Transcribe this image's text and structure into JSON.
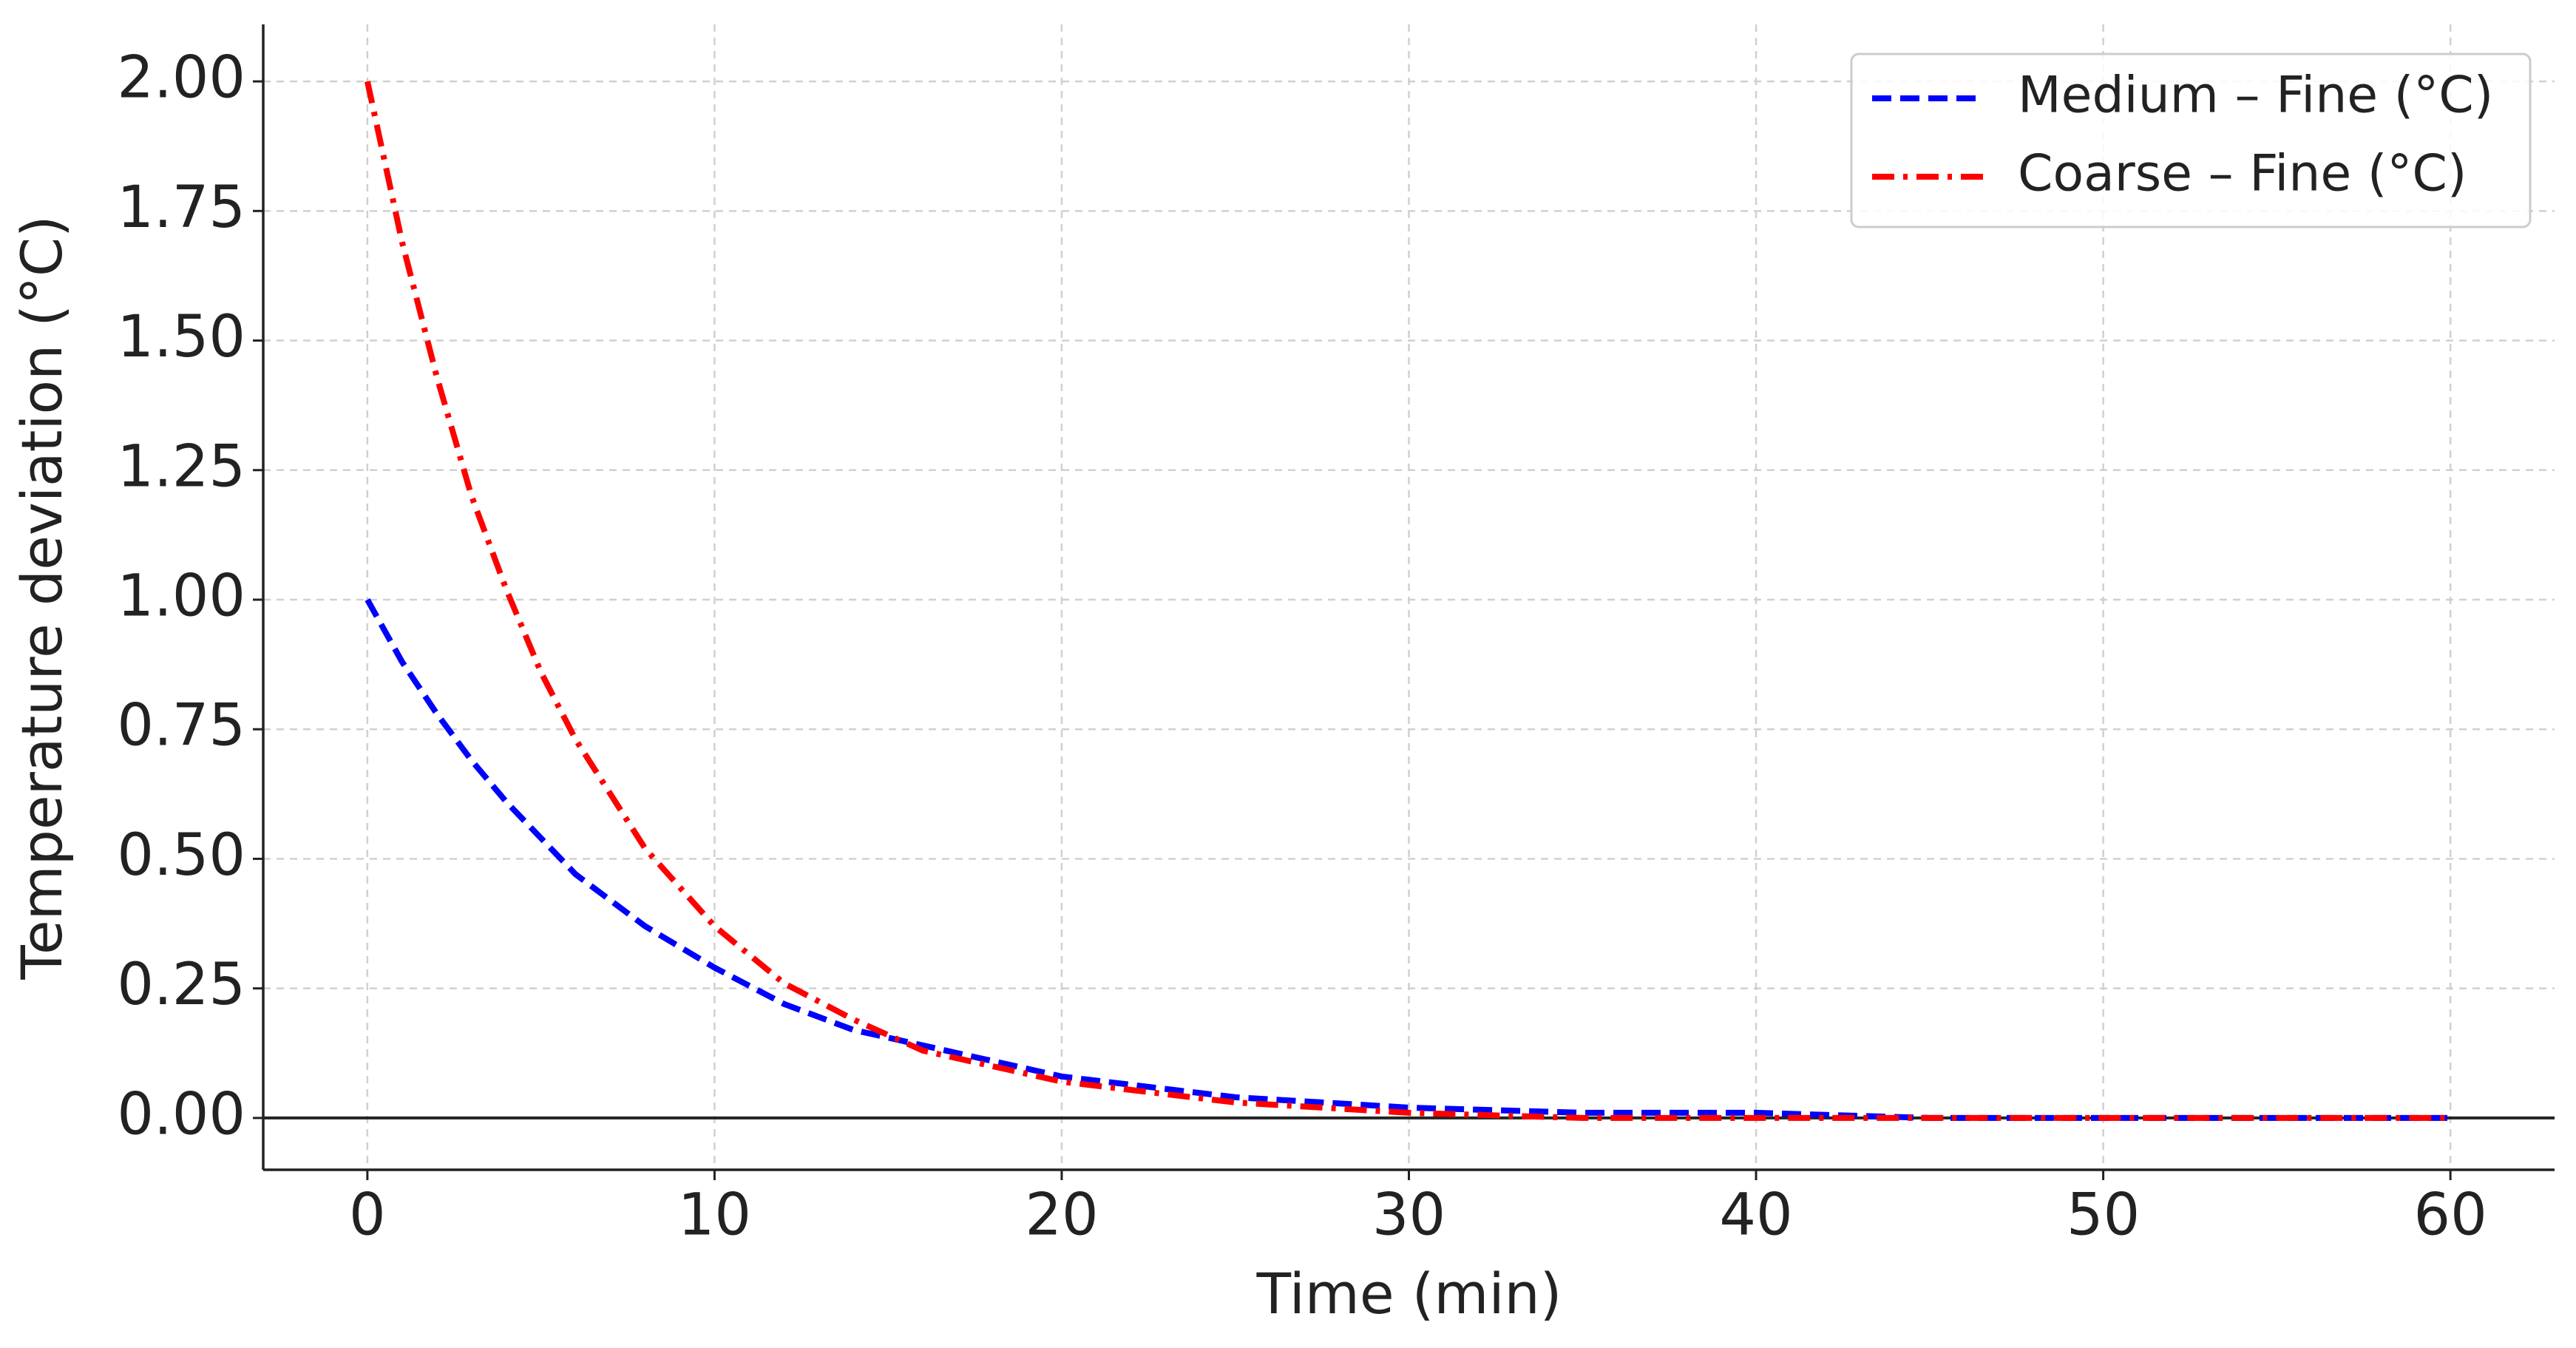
{
  "chart_data": {
    "type": "line",
    "xlabel": "Time (min)",
    "ylabel": "Temperature deviation (°C)",
    "x": [
      0,
      1,
      2,
      3,
      4,
      5,
      6,
      8,
      10,
      12,
      14,
      16,
      18,
      20,
      25,
      30,
      35,
      40,
      45,
      50,
      55,
      60
    ],
    "series": [
      {
        "name": "Medium – Fine (°C)",
        "color": "#0000ff",
        "dash": "dashed",
        "values": [
          1.0,
          0.88,
          0.78,
          0.69,
          0.61,
          0.54,
          0.47,
          0.37,
          0.29,
          0.22,
          0.17,
          0.14,
          0.11,
          0.08,
          0.04,
          0.02,
          0.01,
          0.01,
          0,
          0,
          0,
          0
        ]
      },
      {
        "name": "Coarse – Fine (°C)",
        "color": "#ff0000",
        "dash": "dashdot",
        "values": [
          2.0,
          1.69,
          1.43,
          1.2,
          1.02,
          0.86,
          0.73,
          0.52,
          0.37,
          0.26,
          0.19,
          0.13,
          0.1,
          0.07,
          0.03,
          0.01,
          0,
          0,
          0,
          0,
          0,
          0
        ]
      }
    ],
    "xlim": [
      -3,
      63
    ],
    "ylim": [
      -0.1,
      2.11
    ],
    "xticks": [
      0,
      10,
      20,
      30,
      40,
      50,
      60
    ],
    "yticks": [
      {
        "value": 0,
        "label": "0.00"
      },
      {
        "value": 0.25,
        "label": "0.25"
      },
      {
        "value": 0.5,
        "label": "0.50"
      },
      {
        "value": 0.75,
        "label": "0.75"
      },
      {
        "value": 1,
        "label": "1.00"
      },
      {
        "value": 1.25,
        "label": "1.25"
      },
      {
        "value": 1.5,
        "label": "1.50"
      },
      {
        "value": 1.75,
        "label": "1.75"
      },
      {
        "value": 2,
        "label": "2.00"
      }
    ],
    "grid": true,
    "reference_line": 0,
    "legend": "upper right"
  }
}
